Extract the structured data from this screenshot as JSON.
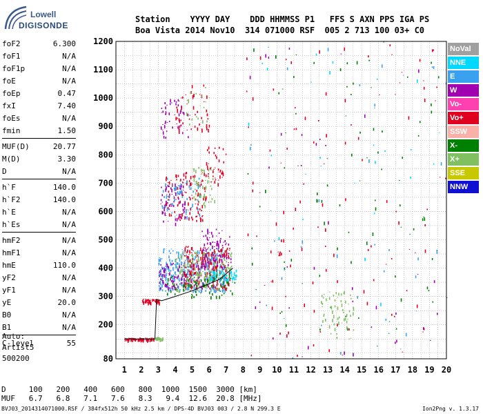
{
  "logo": {
    "line1": "Lowell",
    "line2": "DIGISONDE"
  },
  "header": {
    "row1": "Station    YYYY DAY    DDD HHMMSS P1   FFS S AXN PPS IGA PS",
    "row2": "Boa Vista 2014 Nov10  314 071000 RSF  005 2 713 100 03+ C0"
  },
  "params_group1": [
    {
      "name": "foF2",
      "value": "6.300"
    },
    {
      "name": "foF1",
      "value": "N/A"
    },
    {
      "name": "foF1p",
      "value": "N/A"
    },
    {
      "name": "foE",
      "value": "N/A"
    },
    {
      "name": "foEp",
      "value": "0.47"
    },
    {
      "name": "fxI",
      "value": "7.40"
    },
    {
      "name": "foEs",
      "value": "N/A"
    },
    {
      "name": "fmin",
      "value": "1.50"
    }
  ],
  "params_group2": [
    {
      "name": "MUF(D)",
      "value": "20.77"
    },
    {
      "name": "M(D)",
      "value": "3.30"
    },
    {
      "name": "D",
      "value": "N/A"
    }
  ],
  "params_group3": [
    {
      "name": "h`F",
      "value": "140.0"
    },
    {
      "name": "h`F2",
      "value": "140.0"
    },
    {
      "name": "h`E",
      "value": "N/A"
    },
    {
      "name": "h`Es",
      "value": "N/A"
    }
  ],
  "params_group4": [
    {
      "name": "hmF2",
      "value": "N/A"
    },
    {
      "name": "hmF1",
      "value": "N/A"
    },
    {
      "name": "hmE",
      "value": "110.0"
    },
    {
      "name": "yF2",
      "value": "N/A"
    },
    {
      "name": "yF1",
      "value": "N/A"
    },
    {
      "name": "yE",
      "value": "20.0"
    },
    {
      "name": "B0",
      "value": "N/A"
    },
    {
      "name": "B1",
      "value": "N/A"
    }
  ],
  "params_group5": [
    {
      "name": "C-level",
      "value": "55"
    }
  ],
  "auto": {
    "l1": "Auto:",
    "l2": "Artist5",
    "l3": "500200"
  },
  "footer": {
    "d_row": "D     100   200   400   600   800  1000  1500  3000 [km]",
    "muf_row": "MUF   6.7   6.8   7.1   7.6   8.3   9.4  12.6  20.8 [MHz]",
    "info": "BVJ03_2014314071000.RSF / 384fx512h 50 kHz 2.5 km / DPS-4D BVJ03 003 / 2.8 N 299.3 E",
    "version": "Ion2Png v. 1.3.17"
  },
  "legend": [
    {
      "label": "NoVal",
      "color": "#a0a0a0"
    },
    {
      "label": "NNE",
      "color": "#00d8ff"
    },
    {
      "label": "E",
      "color": "#3aa0f0"
    },
    {
      "label": "W",
      "color": "#a000b0"
    },
    {
      "label": "Vo-",
      "color": "#ff40b0"
    },
    {
      "label": "Vo+",
      "color": "#e00020"
    },
    {
      "label": "SSW",
      "color": "#f8b0a8"
    },
    {
      "label": "X-",
      "color": "#008000"
    },
    {
      "label": "X+",
      "color": "#80c060"
    },
    {
      "label": "SSE",
      "color": "#c8c800"
    },
    {
      "label": "NNW",
      "color": "#1010d0"
    }
  ],
  "chart_data": {
    "type": "scatter",
    "xlim": [
      0.5,
      20
    ],
    "ylim": [
      80,
      1200
    ],
    "x_ticks": [
      1,
      2,
      3,
      4,
      5,
      6,
      7,
      8,
      9,
      10,
      11,
      12,
      13,
      14,
      15,
      16,
      17,
      18,
      19,
      20
    ],
    "y_ticks": [
      80,
      200,
      300,
      400,
      500,
      600,
      700,
      800,
      900,
      1000,
      1100,
      1200
    ],
    "grid": true,
    "trace": [
      {
        "f": 1.0,
        "h": 150
      },
      {
        "f": 2.8,
        "h": 150
      },
      {
        "f": 2.9,
        "h": 290
      },
      {
        "f": 3.2,
        "h": 285
      },
      {
        "f": 4.0,
        "h": 300
      },
      {
        "f": 5.0,
        "h": 320
      },
      {
        "f": 6.0,
        "h": 345
      },
      {
        "f": 6.6,
        "h": 360
      },
      {
        "f": 7.4,
        "h": 400
      }
    ],
    "clusters": [
      {
        "series": "Vo+",
        "x": [
          1.0,
          2.8
        ],
        "y": [
          148,
          155
        ],
        "n": 70
      },
      {
        "series": "X+",
        "x": [
          2.8,
          3.3
        ],
        "y": [
          148,
          158
        ],
        "n": 20
      },
      {
        "series": "Vo+",
        "x": [
          2.0,
          3.1
        ],
        "y": [
          280,
          292
        ],
        "n": 50
      },
      {
        "series": "E",
        "x": [
          3.0,
          7.0
        ],
        "y": [
          320,
          470
        ],
        "n": 360
      },
      {
        "series": "W",
        "x": [
          3.0,
          6.2
        ],
        "y": [
          330,
          420
        ],
        "n": 120
      },
      {
        "series": "Vo+",
        "x": [
          4.5,
          7.2
        ],
        "y": [
          330,
          480
        ],
        "n": 220
      },
      {
        "series": "X+",
        "x": [
          4.0,
          7.3
        ],
        "y": [
          320,
          460
        ],
        "n": 140
      },
      {
        "series": "W",
        "x": [
          5.5,
          7.3
        ],
        "y": [
          400,
          540
        ],
        "n": 80
      },
      {
        "series": "NNE",
        "x": [
          6.0,
          7.6
        ],
        "y": [
          360,
          395
        ],
        "n": 60
      },
      {
        "series": "X-",
        "x": [
          3.5,
          7.5
        ],
        "y": [
          300,
          380
        ],
        "n": 80
      },
      {
        "series": "W",
        "x": [
          3.1,
          4.6
        ],
        "y": [
          560,
          700
        ],
        "n": 70
      },
      {
        "series": "Vo+",
        "x": [
          3.4,
          5.8
        ],
        "y": [
          570,
          740
        ],
        "n": 110
      },
      {
        "series": "E",
        "x": [
          3.2,
          5.5
        ],
        "y": [
          580,
          720
        ],
        "n": 60
      },
      {
        "series": "X+",
        "x": [
          5.0,
          6.3
        ],
        "y": [
          620,
          760
        ],
        "n": 50
      },
      {
        "series": "Vo+",
        "x": [
          5.8,
          7.0
        ],
        "y": [
          700,
          830
        ],
        "n": 40
      },
      {
        "series": "W",
        "x": [
          3.1,
          4.8
        ],
        "y": [
          860,
          1000
        ],
        "n": 50
      },
      {
        "series": "Vo+",
        "x": [
          4.0,
          6.0
        ],
        "y": [
          880,
          1050
        ],
        "n": 50
      },
      {
        "series": "X+",
        "x": [
          4.5,
          6.0
        ],
        "y": [
          900,
          1050
        ],
        "n": 20
      },
      {
        "series": "Vo+",
        "x": [
          10.0,
          10.3
        ],
        "y": [
          430,
          470
        ],
        "n": 6
      },
      {
        "series": "Vo+",
        "x": [
          8.0,
          20.0
        ],
        "y": [
          80,
          1200
        ],
        "n": 110
      },
      {
        "series": "X-",
        "x": [
          8.0,
          20.0
        ],
        "y": [
          80,
          1200
        ],
        "n": 90
      },
      {
        "series": "X+",
        "x": [
          12.5,
          14.5
        ],
        "y": [
          150,
          320
        ],
        "n": 60
      },
      {
        "series": "E",
        "x": [
          8.0,
          20.0
        ],
        "y": [
          80,
          1200
        ],
        "n": 40
      },
      {
        "series": "W",
        "x": [
          8.0,
          20.0
        ],
        "y": [
          80,
          1200
        ],
        "n": 40
      },
      {
        "series": "NNE",
        "x": [
          8.0,
          20.0
        ],
        "y": [
          80,
          1200
        ],
        "n": 25
      }
    ]
  }
}
